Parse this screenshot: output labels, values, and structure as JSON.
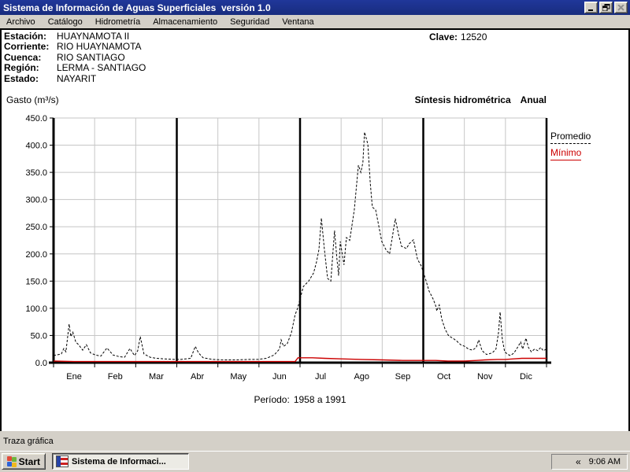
{
  "window": {
    "title": "Sistema de Información de Aguas Superficiales  versión 1.0"
  },
  "menu": {
    "items": [
      "Archivo",
      "Catálogo",
      "Hidrometría",
      "Almacenamiento",
      "Seguridad",
      "Ventana"
    ]
  },
  "station": {
    "rows": [
      {
        "label": "Estación:",
        "value": "HUAYNAMOTA II"
      },
      {
        "label": "Corriente:",
        "value": "RIO HUAYNAMOTA"
      },
      {
        "label": "Cuenca:",
        "value": "RIO SANTIAGO"
      },
      {
        "label": "Región:",
        "value": "LERMA - SANTIAGO"
      },
      {
        "label": "Estado:",
        "value": "NAYARIT"
      }
    ],
    "clave_label": "Clave:",
    "clave_value": "12520"
  },
  "chart_data": {
    "type": "line",
    "title_main": "Síntesis hidrométrica",
    "title_sub": "Anual",
    "ylabel": "Gasto (m³/s)",
    "period_label": "Período:",
    "period_value": "1958 a 1991",
    "ylim": [
      0,
      450
    ],
    "y_ticks": [
      450,
      400,
      350,
      300,
      250,
      200,
      150,
      100,
      50,
      0
    ],
    "months": [
      "Ene",
      "Feb",
      "Mar",
      "Abr",
      "May",
      "Jun",
      "Jul",
      "Ago",
      "Sep",
      "Oct",
      "Nov",
      "Dic"
    ],
    "grid": true,
    "quarter_divider_every": 3,
    "legend_position": "right",
    "series": [
      {
        "name": "Promedio",
        "color": "#000000",
        "dash": true,
        "width": 1,
        "points": [
          [
            0,
            13
          ],
          [
            0.19,
            16
          ],
          [
            0.25,
            26
          ],
          [
            0.3,
            20
          ],
          [
            0.38,
            71
          ],
          [
            0.42,
            48
          ],
          [
            0.47,
            56
          ],
          [
            0.54,
            38
          ],
          [
            0.61,
            33
          ],
          [
            0.71,
            23
          ],
          [
            0.8,
            33
          ],
          [
            0.9,
            18
          ],
          [
            1.02,
            14
          ],
          [
            1.15,
            12
          ],
          [
            1.3,
            27
          ],
          [
            1.45,
            14
          ],
          [
            1.6,
            11
          ],
          [
            1.73,
            10
          ],
          [
            1.86,
            26
          ],
          [
            1.97,
            13
          ],
          [
            2.05,
            22
          ],
          [
            2.11,
            48
          ],
          [
            2.2,
            16
          ],
          [
            2.35,
            10
          ],
          [
            2.5,
            8
          ],
          [
            2.7,
            7
          ],
          [
            2.93,
            6
          ],
          [
            3.1,
            6
          ],
          [
            3.34,
            8
          ],
          [
            3.45,
            30
          ],
          [
            3.53,
            18
          ],
          [
            3.64,
            9
          ],
          [
            3.87,
            6
          ],
          [
            4.16,
            5
          ],
          [
            4.45,
            5
          ],
          [
            4.73,
            6
          ],
          [
            4.98,
            6
          ],
          [
            5.18,
            8
          ],
          [
            5.37,
            14
          ],
          [
            5.5,
            25
          ],
          [
            5.54,
            42
          ],
          [
            5.6,
            30
          ],
          [
            5.69,
            35
          ],
          [
            5.79,
            55
          ],
          [
            5.88,
            88
          ],
          [
            5.94,
            100
          ],
          [
            6.08,
            140
          ],
          [
            6.21,
            150
          ],
          [
            6.33,
            165
          ],
          [
            6.4,
            185
          ],
          [
            6.46,
            208
          ],
          [
            6.52,
            266
          ],
          [
            6.59,
            210
          ],
          [
            6.67,
            155
          ],
          [
            6.75,
            150
          ],
          [
            6.84,
            243
          ],
          [
            6.9,
            190
          ],
          [
            6.94,
            160
          ],
          [
            6.98,
            223
          ],
          [
            7.07,
            180
          ],
          [
            7.13,
            230
          ],
          [
            7.21,
            225
          ],
          [
            7.32,
            281
          ],
          [
            7.42,
            363
          ],
          [
            7.48,
            350
          ],
          [
            7.53,
            368
          ],
          [
            7.57,
            424
          ],
          [
            7.65,
            402
          ],
          [
            7.71,
            330
          ],
          [
            7.76,
            286
          ],
          [
            7.84,
            281
          ],
          [
            7.9,
            258
          ],
          [
            7.99,
            223
          ],
          [
            8.09,
            208
          ],
          [
            8.18,
            200
          ],
          [
            8.32,
            265
          ],
          [
            8.4,
            235
          ],
          [
            8.47,
            214
          ],
          [
            8.59,
            210
          ],
          [
            8.66,
            219
          ],
          [
            8.76,
            226
          ],
          [
            8.86,
            190
          ],
          [
            8.95,
            178
          ],
          [
            9.05,
            155
          ],
          [
            9.14,
            132
          ],
          [
            9.24,
            117
          ],
          [
            9.3,
            105
          ],
          [
            9.33,
            95
          ],
          [
            9.39,
            106
          ],
          [
            9.45,
            80
          ],
          [
            9.53,
            62
          ],
          [
            9.62,
            49
          ],
          [
            9.72,
            45
          ],
          [
            9.81,
            40
          ],
          [
            9.91,
            33
          ],
          [
            10.01,
            30
          ],
          [
            10.1,
            25
          ],
          [
            10.2,
            23
          ],
          [
            10.29,
            28
          ],
          [
            10.35,
            42
          ],
          [
            10.43,
            22
          ],
          [
            10.54,
            15
          ],
          [
            10.68,
            18
          ],
          [
            10.77,
            25
          ],
          [
            10.83,
            55
          ],
          [
            10.87,
            93
          ],
          [
            10.92,
            45
          ],
          [
            10.98,
            20
          ],
          [
            11.06,
            15
          ],
          [
            11.12,
            13
          ],
          [
            11.21,
            18
          ],
          [
            11.31,
            30
          ],
          [
            11.37,
            38
          ],
          [
            11.42,
            25
          ],
          [
            11.5,
            45
          ],
          [
            11.56,
            28
          ],
          [
            11.63,
            20
          ],
          [
            11.71,
            25
          ],
          [
            11.79,
            22
          ],
          [
            11.86,
            28
          ],
          [
            11.92,
            22
          ],
          [
            12,
            25
          ]
        ]
      },
      {
        "name": "Mínimo",
        "color": "#cc0000",
        "dash": false,
        "width": 1.4,
        "points": [
          [
            0,
            3
          ],
          [
            0.5,
            2
          ],
          [
            1,
            2
          ],
          [
            1.5,
            2
          ],
          [
            2,
            2
          ],
          [
            2.5,
            2
          ],
          [
            3,
            2
          ],
          [
            3.5,
            2
          ],
          [
            4,
            2
          ],
          [
            4.5,
            2
          ],
          [
            5,
            2
          ],
          [
            5.5,
            2
          ],
          [
            5.88,
            2
          ],
          [
            5.95,
            9
          ],
          [
            6.3,
            9
          ],
          [
            6.6,
            8
          ],
          [
            7,
            7
          ],
          [
            7.5,
            6
          ],
          [
            8,
            5
          ],
          [
            8.5,
            4
          ],
          [
            9,
            4
          ],
          [
            9.3,
            4
          ],
          [
            9.6,
            3
          ],
          [
            10,
            3
          ],
          [
            10.3,
            4
          ],
          [
            10.5,
            5
          ],
          [
            10.8,
            6
          ],
          [
            11,
            6
          ],
          [
            11.2,
            7
          ],
          [
            11.4,
            8
          ],
          [
            11.7,
            8
          ],
          [
            12,
            8
          ]
        ]
      }
    ]
  },
  "status_bar": {
    "text": "Traza gráfica"
  },
  "taskbar": {
    "start_label": "Start",
    "task_label": "Sistema de Informaci...",
    "tray_chevron": "«",
    "clock": "9:06 AM"
  }
}
